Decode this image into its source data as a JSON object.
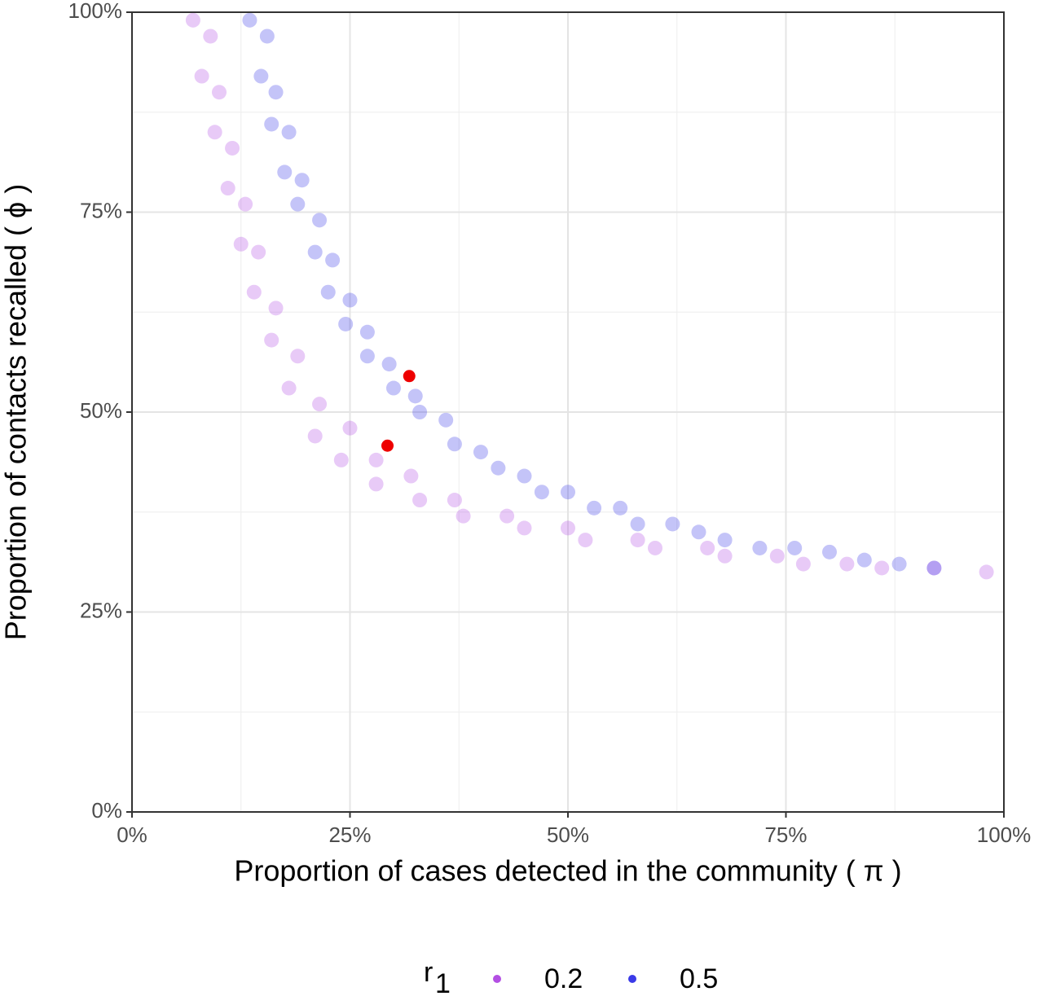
{
  "chart_data": {
    "type": "scatter",
    "x_label": "Proportion of cases detected in the community ( π )",
    "y_label": "Proportion of contacts recalled ( ϕ )",
    "xlim": [
      0,
      100
    ],
    "ylim": [
      0,
      100
    ],
    "xticks": [
      {
        "value": 0,
        "label": "0%"
      },
      {
        "value": 25,
        "label": "25%"
      },
      {
        "value": 50,
        "label": "50%"
      },
      {
        "value": 75,
        "label": "75%"
      },
      {
        "value": 100,
        "label": "100%"
      }
    ],
    "yticks": [
      {
        "value": 0,
        "label": "0%"
      },
      {
        "value": 25,
        "label": "25%"
      },
      {
        "value": 50,
        "label": "50%"
      },
      {
        "value": 75,
        "label": "75%"
      },
      {
        "value": 100,
        "label": "100%"
      }
    ],
    "x_minor_ticks": [
      12.5,
      37.5,
      62.5,
      87.5
    ],
    "y_minor_ticks": [
      12.5,
      37.5,
      62.5,
      87.5
    ],
    "grid": true,
    "legend_title": "r",
    "legend_title_subscript": "1",
    "legend_position": "bottom",
    "series": [
      {
        "name": "0.2",
        "color": "#b34fe3",
        "x": [
          7,
          9,
          8,
          10,
          9.5,
          11.5,
          11,
          13,
          12.5,
          14.5,
          14,
          16.5,
          16,
          19,
          18,
          21.5,
          21,
          25,
          24,
          28,
          28,
          32,
          33,
          37,
          38,
          43,
          45,
          50,
          52,
          58,
          60,
          66,
          68,
          74,
          77,
          82,
          86,
          92,
          98
        ],
        "y": [
          99,
          97,
          92,
          90,
          85,
          83,
          78,
          76,
          71,
          70,
          65,
          63,
          59,
          57,
          53,
          51,
          47,
          48,
          44,
          44,
          41,
          42,
          39,
          39,
          37,
          37,
          35.5,
          35.5,
          34,
          34,
          33,
          33,
          32,
          32,
          31,
          31,
          30.5,
          30.5,
          30
        ]
      },
      {
        "name": "0.5",
        "color": "#3a3ae8",
        "x": [
          13.5,
          15.5,
          14.8,
          16.5,
          16,
          18,
          17.5,
          19.5,
          19,
          21.5,
          21,
          23,
          22.5,
          25,
          24.5,
          27,
          27,
          29.5,
          30,
          32.5,
          33,
          36,
          37,
          40,
          42,
          45,
          47,
          50,
          53,
          56,
          58,
          62,
          65,
          68,
          72,
          76,
          80,
          84,
          88,
          92
        ],
        "y": [
          99,
          97,
          92,
          90,
          86,
          85,
          80,
          79,
          76,
          74,
          70,
          69,
          65,
          64,
          61,
          60,
          57,
          56,
          53,
          52,
          50,
          49,
          46,
          45,
          43,
          42,
          40,
          40,
          38,
          38,
          36,
          36,
          35,
          34,
          33,
          33,
          32.5,
          31.5,
          31,
          30.5
        ]
      }
    ],
    "highlights": {
      "color": "#ee0000",
      "x": [
        31.8,
        29.3
      ],
      "y": [
        54.5,
        45.8
      ]
    }
  }
}
